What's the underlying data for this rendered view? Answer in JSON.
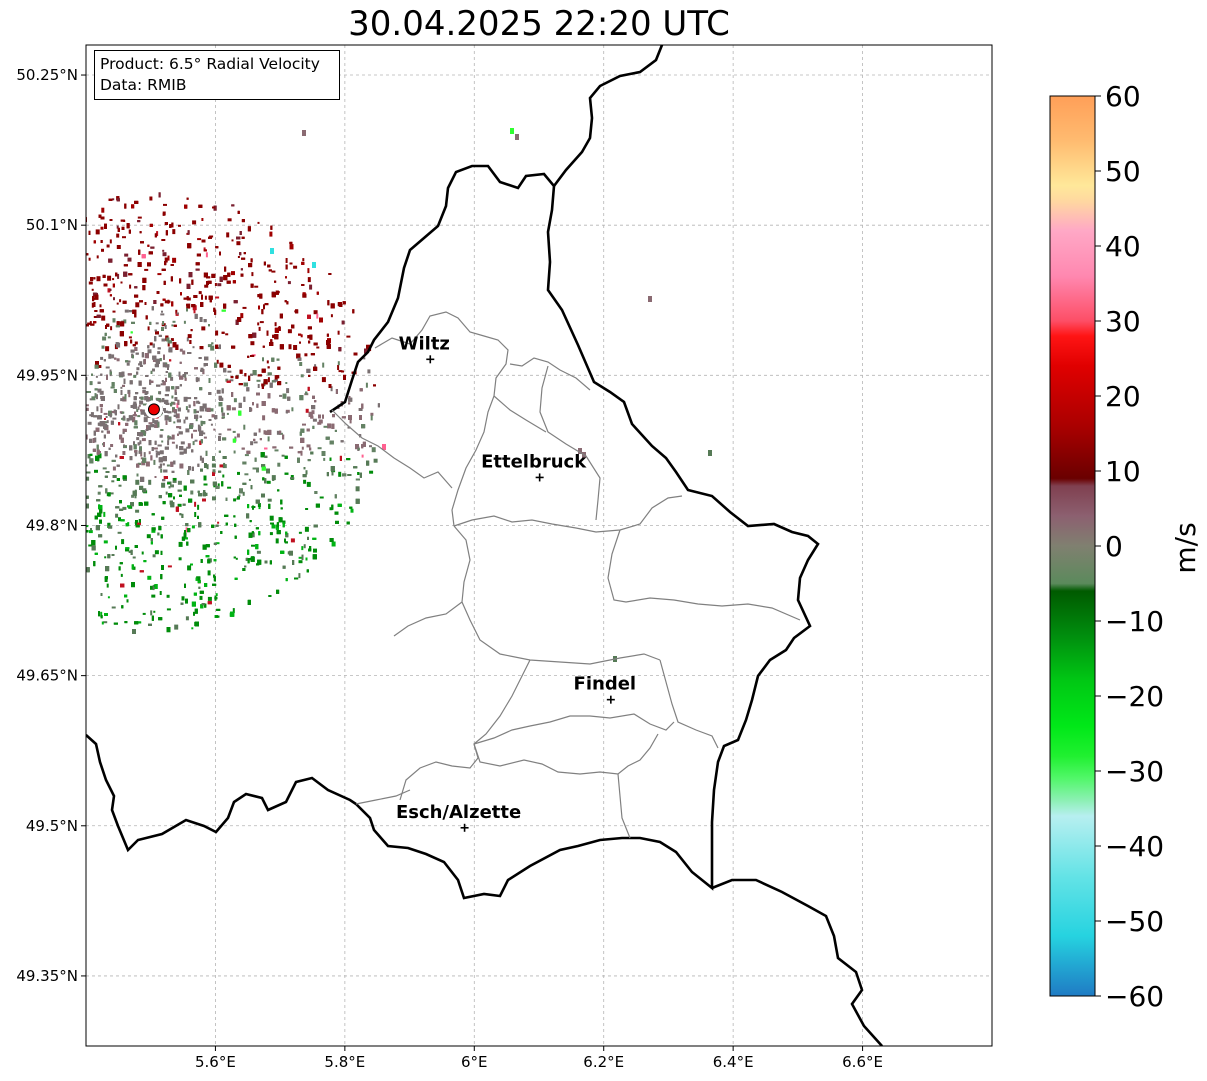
{
  "title": "30.04.2025 22:20 UTC",
  "info": {
    "product": "Product: 6.5° Radial Velocity",
    "data_source": "Data: RMIB"
  },
  "map": {
    "extent": {
      "lon": [
        5.4,
        6.8
      ],
      "lat": [
        49.28,
        50.28
      ]
    },
    "lat_ticks": [
      {
        "value": 50.25,
        "label": "50.25°N"
      },
      {
        "value": 50.1,
        "label": "50.1°N"
      },
      {
        "value": 49.95,
        "label": "49.95°N"
      },
      {
        "value": 49.8,
        "label": "49.8°N"
      },
      {
        "value": 49.65,
        "label": "49.65°N"
      },
      {
        "value": 49.5,
        "label": "49.5°N"
      },
      {
        "value": 49.35,
        "label": "49.35°N"
      }
    ],
    "lon_ticks": [
      {
        "value": 5.6,
        "label": "5.6°E"
      },
      {
        "value": 5.8,
        "label": "5.8°E"
      },
      {
        "value": 6.0,
        "label": "6°E"
      },
      {
        "value": 6.2,
        "label": "6.2°E"
      },
      {
        "value": 6.4,
        "label": "6.4°E"
      },
      {
        "value": 6.6,
        "label": "6.6°E"
      }
    ],
    "cities": [
      {
        "name": "Wiltz",
        "lon": 5.932,
        "lat": 49.966
      },
      {
        "name": "Ettelbruck",
        "lon": 6.101,
        "lat": 49.848
      },
      {
        "name": "Findel",
        "lon": 6.211,
        "lat": 49.626
      },
      {
        "name": "Esch/Alzette",
        "lon": 5.985,
        "lat": 49.498
      }
    ],
    "radar_site": {
      "lon": 5.505,
      "lat": 49.914,
      "color": "#ee0000"
    },
    "colors": {
      "border": "#000000",
      "canton": "#808080",
      "grid": "#b5b5b5"
    }
  },
  "colorbar": {
    "label": "m/s",
    "min": -60,
    "max": 60,
    "ticks": [
      60,
      50,
      40,
      30,
      20,
      10,
      0,
      -10,
      -20,
      -30,
      -40,
      -50,
      -60
    ],
    "tick_labels": [
      "60",
      "50",
      "40",
      "30",
      "20",
      "10",
      "0",
      "−10",
      "−20",
      "−30",
      "−40",
      "−50",
      "−60"
    ],
    "stops": [
      {
        "v": -60,
        "c": "#1f7bc4"
      },
      {
        "v": -56,
        "c": "#22a6d2"
      },
      {
        "v": -52,
        "c": "#26d3e0"
      },
      {
        "v": -44,
        "c": "#64e3e6"
      },
      {
        "v": -36,
        "c": "#b7eff0"
      },
      {
        "v": -34,
        "c": "#8ef0b6"
      },
      {
        "v": -31,
        "c": "#52f76a"
      },
      {
        "v": -28,
        "c": "#20f030"
      },
      {
        "v": -24,
        "c": "#00e818"
      },
      {
        "v": -18,
        "c": "#00c814"
      },
      {
        "v": -12,
        "c": "#008e0e"
      },
      {
        "v": -6,
        "c": "#005a00"
      },
      {
        "v": -5,
        "c": "#5b8a5c"
      },
      {
        "v": 0,
        "c": "#808070"
      },
      {
        "v": 4,
        "c": "#8c6070"
      },
      {
        "v": 8,
        "c": "#804050"
      },
      {
        "v": 9,
        "c": "#6a0000"
      },
      {
        "v": 16,
        "c": "#aa0000"
      },
      {
        "v": 24,
        "c": "#e00000"
      },
      {
        "v": 28,
        "c": "#ff1414"
      },
      {
        "v": 30,
        "c": "#fd4e66"
      },
      {
        "v": 36,
        "c": "#ff88b0"
      },
      {
        "v": 42,
        "c": "#ffa8c6"
      },
      {
        "v": 46,
        "c": "#ffd8a0"
      },
      {
        "v": 48,
        "c": "#ffe89a"
      },
      {
        "v": 54,
        "c": "#ffbb70"
      },
      {
        "v": 60,
        "c": "#ff9f58"
      }
    ]
  },
  "echo_palette": [
    "#8b0000",
    "#a00000",
    "#7a7072",
    "#8a6a72",
    "#648264",
    "#567a56",
    "#008c0a",
    "#00b414",
    "#7a2030",
    "#c01020",
    "#ff6090",
    "#30e0e0",
    "#30ff30"
  ]
}
